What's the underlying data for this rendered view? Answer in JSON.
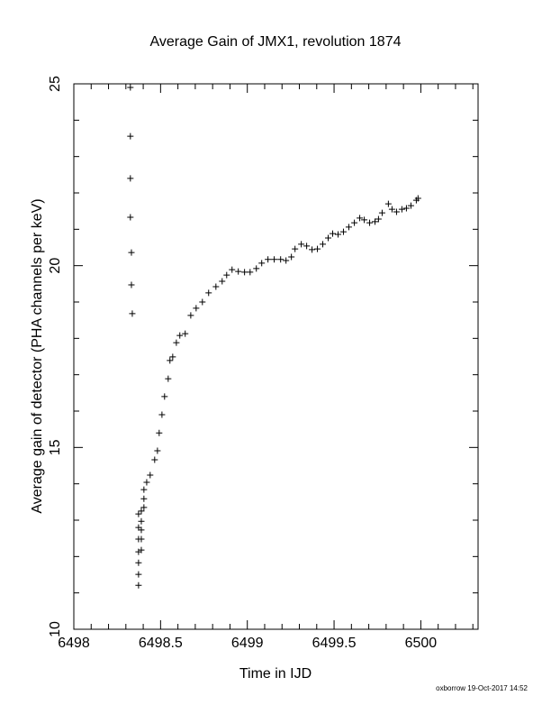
{
  "chart_data": {
    "type": "scatter",
    "title": "Average Gain of JMX1, revolution 1874",
    "xlabel": "Time in IJD",
    "ylabel": "Average gain of detector (PHA channels per keV)",
    "footer": "oxborrow 19-Oct-2017 14:52",
    "color": "#000000",
    "marker": "plus",
    "xlim": [
      6498,
      6500.33
    ],
    "ylim": [
      10,
      25
    ],
    "xticks": [
      6498,
      6498.5,
      6499,
      6499.5,
      6500
    ],
    "yticks": [
      10,
      15,
      20,
      25
    ],
    "xminorticks": [
      6498.1,
      6498.2,
      6498.3,
      6498.4,
      6498.6,
      6498.7,
      6498.8,
      6498.9,
      6499.1,
      6499.2,
      6499.3,
      6499.4,
      6499.6,
      6499.7,
      6499.8,
      6499.9,
      6500.1,
      6500.2,
      6500.3
    ],
    "yminorticks": [
      11,
      12,
      13,
      14,
      16,
      17,
      18,
      19,
      21,
      22,
      23,
      24
    ],
    "x": [
      6498.326,
      6498.326,
      6498.326,
      6498.326,
      6498.332,
      6498.332,
      6498.337,
      6498.373,
      6498.373,
      6498.373,
      6498.373,
      6498.373,
      6498.373,
      6498.373,
      6498.389,
      6498.389,
      6498.389,
      6498.389,
      6498.389,
      6498.404,
      6498.404,
      6498.404,
      6498.42,
      6498.44,
      6498.466,
      6498.482,
      6498.492,
      6498.508,
      6498.523,
      6498.544,
      6498.554,
      6498.57,
      6498.591,
      6498.611,
      6498.642,
      6498.674,
      6498.705,
      6498.741,
      6498.777,
      6498.819,
      6498.855,
      6498.881,
      6498.912,
      6498.948,
      6498.984,
      6499.016,
      6499.052,
      6499.083,
      6499.119,
      6499.155,
      6499.192,
      6499.223,
      6499.254,
      6499.275,
      6499.311,
      6499.342,
      6499.373,
      6499.404,
      6499.435,
      6499.466,
      6499.492,
      6499.523,
      6499.554,
      6499.585,
      6499.617,
      6499.648,
      6499.674,
      6499.705,
      6499.736,
      6499.756,
      6499.777,
      6499.813,
      6499.834,
      6499.86,
      6499.891,
      6499.917,
      6499.943,
      6499.974,
      6499.984
    ],
    "values": [
      24.9,
      23.56,
      22.4,
      21.33,
      20.36,
      19.47,
      18.68,
      11.21,
      11.51,
      11.83,
      12.13,
      12.48,
      12.8,
      13.17,
      12.18,
      12.48,
      12.73,
      12.97,
      13.25,
      13.35,
      13.59,
      13.84,
      14.04,
      14.24,
      14.66,
      14.91,
      15.4,
      15.9,
      16.4,
      16.89,
      17.39,
      17.49,
      17.88,
      18.08,
      18.13,
      18.63,
      18.83,
      19.0,
      19.25,
      19.42,
      19.57,
      19.74,
      19.89,
      19.84,
      19.82,
      19.82,
      19.92,
      20.07,
      20.17,
      20.17,
      20.17,
      20.14,
      20.24,
      20.46,
      20.59,
      20.54,
      20.44,
      20.46,
      20.59,
      20.76,
      20.88,
      20.86,
      20.93,
      21.06,
      21.18,
      21.31,
      21.26,
      21.18,
      21.21,
      21.28,
      21.45,
      21.7,
      21.55,
      21.48,
      21.55,
      21.58,
      21.65,
      21.8,
      21.85
    ]
  }
}
